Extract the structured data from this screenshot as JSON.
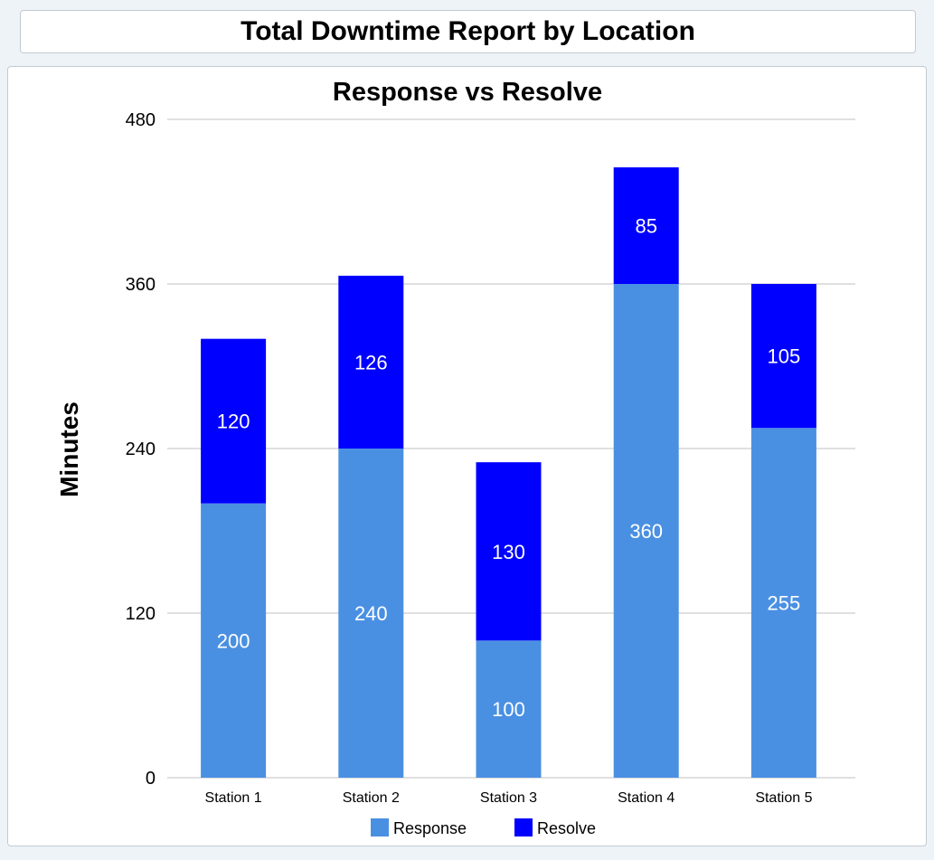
{
  "header": {
    "title": "Total Downtime Report by Location"
  },
  "chart_data": {
    "type": "bar",
    "stacked": true,
    "title": "Response vs Resolve",
    "xlabel": "",
    "ylabel": "Minutes",
    "ylim": [
      0,
      480
    ],
    "yticks": [
      "0",
      "120",
      "240",
      "360",
      "480"
    ],
    "grid": true,
    "legend_position": "bottom",
    "categories": [
      "Station 1",
      "Station 2",
      "Station 3",
      "Station 4",
      "Station 5"
    ],
    "series": [
      {
        "name": "Response",
        "color": "#4a90e2",
        "values": [
          200,
          240,
          100,
          360,
          255
        ]
      },
      {
        "name": "Resolve",
        "color": "#0000ff",
        "values": [
          120,
          126,
          130,
          85,
          105
        ]
      }
    ]
  }
}
